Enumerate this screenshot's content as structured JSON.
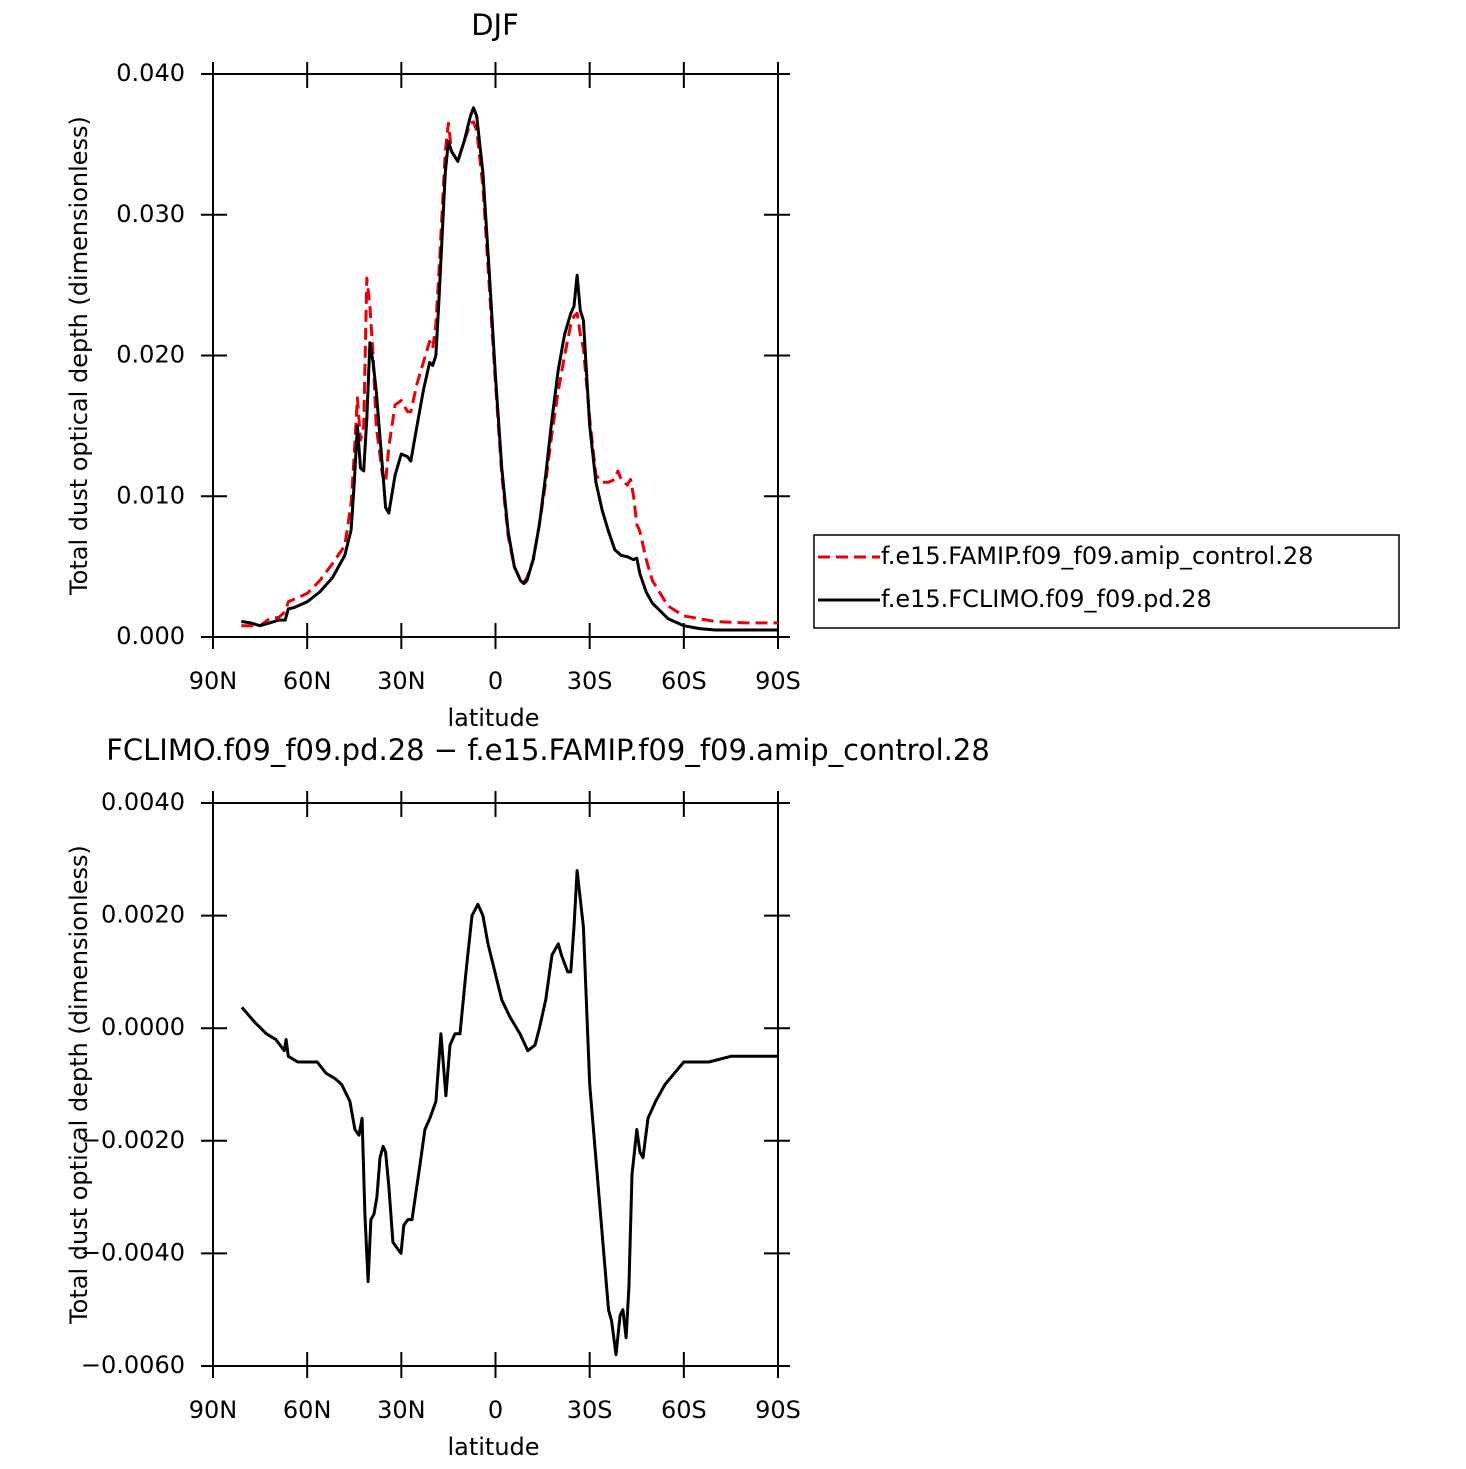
{
  "chart_data": [
    {
      "type": "line",
      "title": "DJF",
      "xlabel": "latitude",
      "ylabel": "Total dust optical depth (dimensionless)",
      "x": [
        81,
        78,
        75,
        72,
        69,
        67,
        66,
        64,
        60,
        56,
        52,
        48,
        46,
        45,
        44,
        43,
        42,
        41,
        40,
        39,
        38,
        36,
        35,
        34,
        32,
        30,
        28,
        27,
        25,
        23,
        21,
        20,
        19,
        18,
        16,
        15,
        14,
        12,
        10,
        8,
        7,
        6,
        4,
        2,
        0,
        -2,
        -4,
        -6,
        -8,
        -9,
        -10,
        -12,
        -14,
        -16,
        -18,
        -20,
        -22,
        -24,
        -25,
        -26,
        -27,
        -28,
        -30,
        -32,
        -34,
        -36,
        -38,
        -39,
        -40,
        -42,
        -43,
        -44,
        -45,
        -46,
        -48,
        -50,
        -55,
        -60,
        -65,
        -70,
        -80,
        -90
      ],
      "series": [
        {
          "name": "f.e15.FAMIP.f09_f09.amip_control.28",
          "color": "#e8000b",
          "style": "dashed",
          "values": [
            0.0008,
            0.0008,
            0.0008,
            0.0013,
            0.0014,
            0.0018,
            0.0025,
            0.0027,
            0.0031,
            0.004,
            0.0052,
            0.0065,
            0.0095,
            0.013,
            0.017,
            0.014,
            0.015,
            0.0255,
            0.0235,
            0.02,
            0.015,
            0.0115,
            0.011,
            0.0135,
            0.0165,
            0.0168,
            0.016,
            0.016,
            0.018,
            0.0195,
            0.021,
            0.0205,
            0.0222,
            0.026,
            0.0345,
            0.0365,
            0.0345,
            0.0338,
            0.0352,
            0.0365,
            0.0366,
            0.036,
            0.032,
            0.025,
            0.018,
            0.0115,
            0.0072,
            0.005,
            0.004,
            0.0039,
            0.0042,
            0.0055,
            0.008,
            0.011,
            0.0145,
            0.0175,
            0.02,
            0.0222,
            0.0228,
            0.023,
            0.0215,
            0.0205,
            0.0155,
            0.0115,
            0.011,
            0.011,
            0.0112,
            0.0118,
            0.0112,
            0.0108,
            0.0112,
            0.01,
            0.008,
            0.0075,
            0.0055,
            0.004,
            0.0022,
            0.0015,
            0.0013,
            0.0011,
            0.001,
            0.001
          ]
        },
        {
          "name": "f.e15.FCLIMO.f09_f09.pd.28",
          "color": "#000000",
          "style": "solid",
          "values": [
            0.0011,
            0.001,
            0.0008,
            0.001,
            0.0012,
            0.0012,
            0.002,
            0.0021,
            0.0025,
            0.0032,
            0.0042,
            0.0058,
            0.0076,
            0.011,
            0.015,
            0.012,
            0.0118,
            0.0155,
            0.0209,
            0.0195,
            0.0175,
            0.012,
            0.0092,
            0.0088,
            0.0115,
            0.013,
            0.0128,
            0.0125,
            0.015,
            0.0175,
            0.0195,
            0.0193,
            0.02,
            0.024,
            0.033,
            0.0352,
            0.0345,
            0.0338,
            0.0352,
            0.037,
            0.0376,
            0.037,
            0.033,
            0.026,
            0.0185,
            0.012,
            0.0075,
            0.005,
            0.004,
            0.0038,
            0.004,
            0.0055,
            0.008,
            0.0115,
            0.0155,
            0.019,
            0.0215,
            0.023,
            0.0235,
            0.0257,
            0.0232,
            0.0225,
            0.015,
            0.011,
            0.009,
            0.0075,
            0.0062,
            0.006,
            0.0058,
            0.0057,
            0.0056,
            0.0055,
            0.0056,
            0.0045,
            0.0032,
            0.0024,
            0.0013,
            0.0008,
            0.0006,
            0.0005,
            0.0005,
            0.0005
          ]
        }
      ],
      "xlim": [
        90,
        -90
      ],
      "xticks": [
        {
          "value": 90,
          "label": "90N"
        },
        {
          "value": 60,
          "label": "60N"
        },
        {
          "value": 30,
          "label": "30N"
        },
        0,
        {
          "value": -30,
          "label": "30S"
        },
        {
          "value": -60,
          "label": "60S"
        },
        {
          "value": -90,
          "label": "90S"
        }
      ],
      "ylim": [
        0,
        0.04
      ],
      "yticks": [
        {
          "value": 0,
          "label": "0.000"
        },
        {
          "value": 0.01,
          "label": "0.010"
        },
        {
          "value": 0.02,
          "label": "0.020"
        },
        {
          "value": 0.03,
          "label": "0.030"
        },
        {
          "value": 0.04,
          "label": "0.040"
        }
      ],
      "legend": "right"
    },
    {
      "type": "line",
      "title": "FCLIMO.f09_f09.pd.28 − f.e15.FAMIP.f09_f09.amip_control.28",
      "xlabel": "latitude",
      "ylabel": "Total dust optical depth (dimensionless)",
      "x": [
        80.8,
        76.6,
        73,
        70,
        67.3,
        66.7,
        66,
        63,
        60,
        56.8,
        54,
        51,
        49,
        46.4,
        44.8,
        43.5,
        42.5,
        41.6,
        40.6,
        39.7,
        38.7,
        37.8,
        36.8,
        35.8,
        35,
        34,
        32.7,
        31.4,
        30.1,
        29.2,
        27.9,
        26.6,
        24,
        22.5,
        20.9,
        19,
        17.4,
        15.8,
        14.5,
        12.9,
        11.3,
        9.4,
        7.5,
        5.6,
        4,
        2.4,
        0.2,
        -2,
        -4.6,
        -7.8,
        -10.3,
        -12.6,
        -14,
        -16,
        -18,
        -20,
        -21,
        -23,
        -24,
        -25,
        -26,
        -28,
        -30,
        -33,
        -36,
        -37,
        -38.4,
        -39.7,
        -40.6,
        -41.6,
        -42.5,
        -43.5,
        -45,
        -46,
        -47,
        -48.6,
        -51,
        -54,
        -57,
        -60,
        -65,
        -68,
        -75,
        -84,
        -90
      ],
      "series": [
        {
          "color": "#000000",
          "style": "solid",
          "values": [
            0.00037,
            0.0001,
            -0.0001,
            -0.0002,
            -0.0004,
            -0.0002,
            -0.0005,
            -0.0006,
            -0.0006,
            -0.0006,
            -0.0008,
            -0.0009,
            -0.001,
            -0.0013,
            -0.0018,
            -0.0019,
            -0.0016,
            -0.0033,
            -0.0045,
            -0.0034,
            -0.0033,
            -0.003,
            -0.0023,
            -0.0021,
            -0.0022,
            -0.0028,
            -0.0038,
            -0.0039,
            -0.004,
            -0.0035,
            -0.0034,
            -0.0034,
            -0.0024,
            -0.0018,
            -0.0016,
            -0.0013,
            -0.0001,
            -0.0012,
            -0.0003,
            -0.0001,
            -0.0001,
            0.001,
            0.002,
            0.0022,
            0.002,
            0.0015,
            0.001,
            0.0005,
            0.0002,
            -0.0001,
            -0.0004,
            -0.0003,
            0,
            0.0005,
            0.0013,
            0.0015,
            0.0013,
            0.001,
            0.001,
            0.0018,
            0.0028,
            0.0018,
            -0.001,
            -0.003,
            -0.005,
            -0.0052,
            -0.0058,
            -0.0051,
            -0.005,
            -0.0055,
            -0.0046,
            -0.0026,
            -0.0018,
            -0.0022,
            -0.0023,
            -0.0016,
            -0.0013,
            -0.001,
            -0.0008,
            -0.0006,
            -0.0006,
            -0.0006,
            -0.0005,
            -0.0005,
            -0.0005
          ]
        }
      ],
      "xlim": [
        90,
        -90
      ],
      "xticks": [
        {
          "value": 90,
          "label": "90N"
        },
        {
          "value": 60,
          "label": "60N"
        },
        {
          "value": 30,
          "label": "30N"
        },
        0,
        {
          "value": -30,
          "label": "30S"
        },
        {
          "value": -60,
          "label": "60S"
        },
        {
          "value": -90,
          "label": "90S"
        }
      ],
      "ylim": [
        -0.006,
        0.004
      ],
      "yticks": [
        {
          "value": -0.006,
          "label": "−0.0060"
        },
        {
          "value": -0.004,
          "label": "−0.0040"
        },
        {
          "value": -0.002,
          "label": "−0.0020"
        },
        {
          "value": 0,
          "label": "0.0000"
        },
        {
          "value": 0.002,
          "label": "0.0020"
        },
        {
          "value": 0.004,
          "label": "0.0040"
        }
      ]
    }
  ]
}
